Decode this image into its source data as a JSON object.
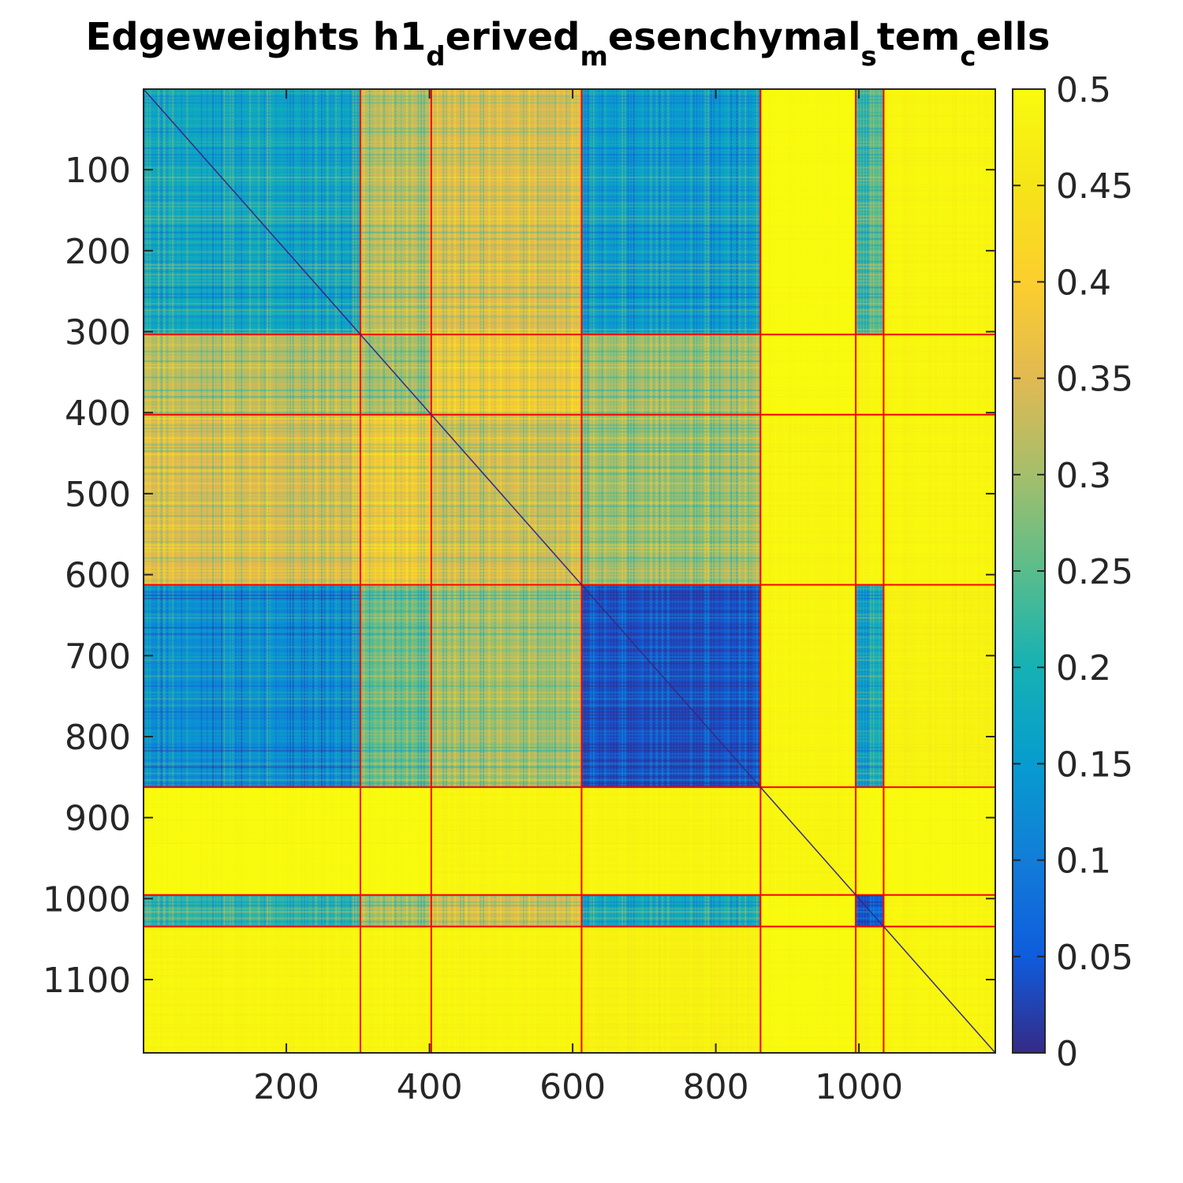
{
  "chart_data": {
    "type": "heatmap",
    "title_parts": [
      {
        "text": "Edgeweights h1",
        "sub": false
      },
      {
        "text": "d",
        "sub": true
      },
      {
        "text": "erived",
        "sub": false
      },
      {
        "text": "m",
        "sub": true
      },
      {
        "text": "esenchymal",
        "sub": false
      },
      {
        "text": "s",
        "sub": true
      },
      {
        "text": "tem",
        "sub": false
      },
      {
        "text": "c",
        "sub": true
      },
      {
        "text": "ells",
        "sub": false
      }
    ],
    "xlabel": "",
    "ylabel": "",
    "xlim": [
      0.5,
      1190.5
    ],
    "ylim": [
      0.5,
      1190.5
    ],
    "y_reversed": true,
    "x_ticks": [
      200,
      400,
      600,
      800,
      1000
    ],
    "x_tick_labels": [
      "200",
      "400",
      "600",
      "800",
      "1000"
    ],
    "y_ticks": [
      100,
      200,
      300,
      400,
      500,
      600,
      700,
      800,
      900,
      1000,
      1100
    ],
    "y_tick_labels": [
      "100",
      "200",
      "300",
      "400",
      "500",
      "600",
      "700",
      "800",
      "900",
      "1000",
      "1100"
    ],
    "colorbar": {
      "colormap": "parula",
      "clim": [
        0,
        0.5
      ],
      "ticks": [
        0,
        0.05,
        0.1,
        0.15,
        0.2,
        0.25,
        0.3,
        0.35,
        0.4,
        0.45,
        0.5
      ],
      "tick_labels": [
        "0",
        "0.05",
        "0.1",
        "0.15",
        "0.2",
        "0.25",
        "0.3",
        "0.35",
        "0.4",
        "0.45",
        "0.5"
      ]
    },
    "cluster_boundaries": [
      303,
      402,
      612,
      862,
      995,
      1034
    ],
    "boundary_color": "#ff0000",
    "block_means": [
      [
        0.18,
        0.32,
        0.35,
        0.16,
        0.5,
        0.24,
        0.49
      ],
      [
        0.32,
        0.3,
        0.38,
        0.3,
        0.5,
        0.49,
        0.49
      ],
      [
        0.35,
        0.38,
        0.34,
        0.3,
        0.49,
        0.49,
        0.49
      ],
      [
        0.13,
        0.26,
        0.3,
        0.04,
        0.49,
        0.18,
        0.48
      ],
      [
        0.5,
        0.5,
        0.49,
        0.49,
        0.49,
        0.5,
        0.5
      ],
      [
        0.22,
        0.3,
        0.34,
        0.19,
        0.5,
        0.05,
        0.49
      ],
      [
        0.49,
        0.49,
        0.49,
        0.48,
        0.5,
        0.49,
        0.49
      ]
    ],
    "grid": false
  }
}
